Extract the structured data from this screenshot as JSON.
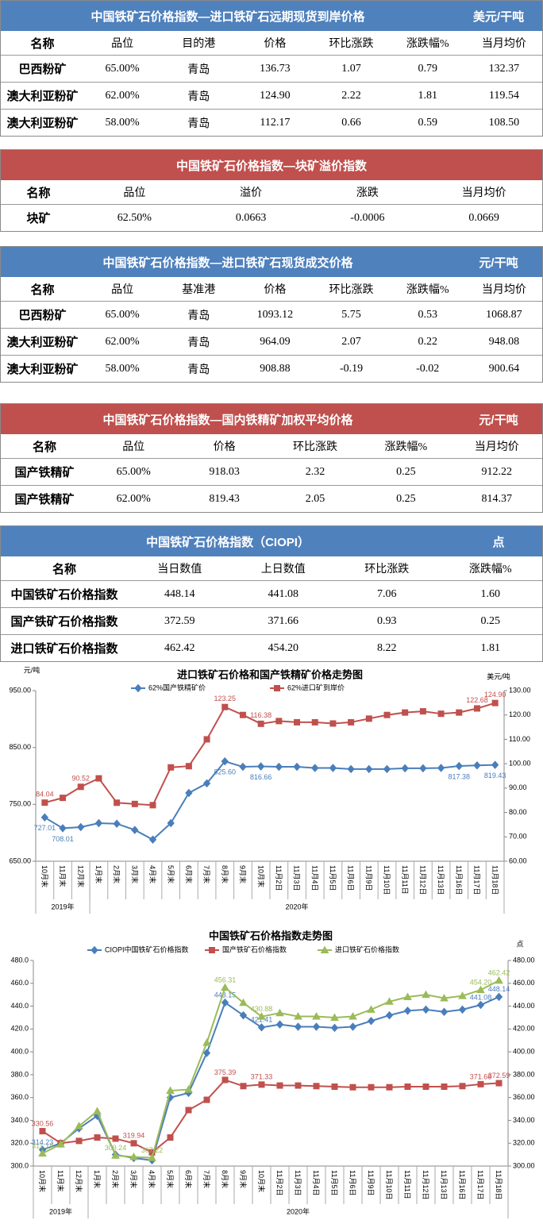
{
  "tables": [
    {
      "title": "中国铁矿石价格指数—进口铁矿石远期现货到岸价格",
      "unit": "美元/干吨",
      "header_color": "#4f81bd",
      "columns": [
        "名称",
        "品位",
        "目的港",
        "价格",
        "环比涨跌",
        "涨跌幅%",
        "当月均价"
      ],
      "rows": [
        [
          "巴西粉矿",
          "65.00%",
          "青岛",
          "136.73",
          "1.07",
          "0.79",
          "132.37"
        ],
        [
          "澳大利亚粉矿",
          "62.00%",
          "青岛",
          "124.90",
          "2.22",
          "1.81",
          "119.54"
        ],
        [
          "澳大利亚粉矿",
          "58.00%",
          "青岛",
          "112.17",
          "0.66",
          "0.59",
          "108.50"
        ]
      ]
    },
    {
      "title": "中国铁矿石价格指数—块矿溢价指数",
      "header_color": "#c0504d",
      "columns": [
        "名称",
        "品位",
        "溢价",
        "涨跌",
        "当月均价"
      ],
      "rows": [
        [
          "块矿",
          "62.50%",
          "0.0663",
          "-0.0006",
          "0.0669"
        ]
      ]
    },
    {
      "title": "中国铁矿石价格指数—进口铁矿石现货成交价格",
      "unit": "元/干吨",
      "header_color": "#4f81bd",
      "columns": [
        "名称",
        "品位",
        "基准港",
        "价格",
        "环比涨跌",
        "涨跌幅%",
        "当月均价"
      ],
      "rows": [
        [
          "巴西粉矿",
          "65.00%",
          "青岛",
          "1093.12",
          "5.75",
          "0.53",
          "1068.87"
        ],
        [
          "澳大利亚粉矿",
          "62.00%",
          "青岛",
          "964.09",
          "2.07",
          "0.22",
          "948.08"
        ],
        [
          "澳大利亚粉矿",
          "58.00%",
          "青岛",
          "908.88",
          "-0.19",
          "-0.02",
          "900.64"
        ]
      ]
    },
    {
      "title": "中国铁矿石价格指数—国内铁精矿加权平均价格",
      "unit": "元/干吨",
      "header_color": "#c0504d",
      "columns": [
        "名称",
        "品位",
        "价格",
        "环比涨跌",
        "涨跌幅%",
        "当月均价"
      ],
      "rows": [
        [
          "国产铁精矿",
          "65.00%",
          "918.03",
          "2.32",
          "0.25",
          "912.22"
        ],
        [
          "国产铁精矿",
          "62.00%",
          "819.43",
          "2.05",
          "0.25",
          "814.37"
        ]
      ]
    },
    {
      "title": "中国铁矿石价格指数（CIOPI）",
      "unit": "点",
      "header_color": "#4f81bd",
      "columns": [
        "名称",
        "当日数值",
        "上日数值",
        "环比涨跌",
        "涨跌幅%"
      ],
      "rows": [
        [
          "中国铁矿石价格指数",
          "448.14",
          "441.08",
          "7.06",
          "1.60"
        ],
        [
          "国产铁矿石价格指数",
          "372.59",
          "371.66",
          "0.93",
          "0.25"
        ],
        [
          "进口铁矿石价格指数",
          "462.42",
          "454.20",
          "8.22",
          "1.81"
        ]
      ]
    }
  ],
  "chart_data": [
    {
      "type": "line",
      "title": "进口铁矿石价格和国产铁精矿价格走势图",
      "y_label": "元/吨",
      "y2_label": "美元/吨",
      "categories": [
        "10月末",
        "11月末",
        "12月末",
        "1月末",
        "2月末",
        "3月末",
        "4月末",
        "5月末",
        "6月末",
        "7月末",
        "8月末",
        "9月末",
        "10月末",
        "11月2日",
        "11月3日",
        "11月4日",
        "11月5日",
        "11月6日",
        "11月9日",
        "11月10日",
        "11月11日",
        "11月12日",
        "11月13日",
        "11月16日",
        "11月17日",
        "11月18日"
      ],
      "x_groups": [
        {
          "label": "2019年",
          "categories": 3
        },
        {
          "label": "2020年",
          "categories": 23
        }
      ],
      "ylim": [
        650,
        950
      ],
      "yticks": [
        {
          "value": 650,
          "label": "650.00"
        },
        {
          "value": 750,
          "label": "750.00"
        },
        {
          "value": 850,
          "label": "850.00"
        },
        {
          "value": 950,
          "label": "950.00"
        }
      ],
      "y2lim": [
        60,
        130
      ],
      "y2ticks": [
        {
          "value": 60,
          "label": "60.00"
        },
        {
          "value": 70,
          "label": "70.00"
        },
        {
          "value": 80,
          "label": "80.00"
        },
        {
          "value": 90,
          "label": "90.00"
        },
        {
          "value": 100,
          "label": "100.00"
        },
        {
          "value": 110,
          "label": "110.00"
        },
        {
          "value": 120,
          "label": "120.00"
        },
        {
          "value": 130,
          "label": "130.00"
        }
      ],
      "series": [
        {
          "name": "62%国产铁精矿价",
          "color": "#4a7ebb",
          "marker": "diamond",
          "values": [
            727.01,
            708.01,
            710,
            717,
            716,
            705,
            688,
            717,
            770,
            787,
            825.6,
            816,
            816.66,
            816,
            816,
            814,
            814,
            812,
            812,
            812,
            813.5,
            813.5,
            814,
            817.38,
            818.5,
            819.43
          ],
          "value_labels": [
            "727.01",
            "708.01",
            null,
            null,
            null,
            null,
            null,
            null,
            null,
            null,
            "825.60",
            null,
            "816.66",
            null,
            null,
            null,
            null,
            null,
            null,
            null,
            null,
            null,
            null,
            "817.38",
            null,
            "819.43"
          ]
        },
        {
          "name": "62%进口矿到岸价",
          "color": "#c0504d",
          "marker": "square",
          "axis": "y2",
          "values": [
            84.04,
            86,
            90.52,
            94,
            84,
            83.5,
            83,
            98.5,
            99,
            110,
            123.25,
            120,
            116.38,
            117.5,
            117,
            117,
            116.5,
            117,
            118.5,
            120,
            121,
            121.5,
            120.5,
            121,
            122.68,
            124.9
          ],
          "value_labels": [
            "84.04",
            null,
            "90.52",
            null,
            null,
            null,
            null,
            null,
            null,
            null,
            "123.25",
            null,
            "116.38",
            null,
            null,
            null,
            null,
            null,
            null,
            null,
            null,
            null,
            null,
            null,
            "122.68",
            "124.90"
          ]
        }
      ]
    },
    {
      "type": "line",
      "title": "中国铁矿石价格指数走势图",
      "y2_label": "点",
      "categories": [
        "10月末",
        "11月末",
        "12月末",
        "1月末",
        "2月末",
        "3月末",
        "4月末",
        "5月末",
        "6月末",
        "7月末",
        "8月末",
        "9月末",
        "10月末",
        "11月2日",
        "11月3日",
        "11月4日",
        "11月5日",
        "11月6日",
        "11月9日",
        "11月10日",
        "11月11日",
        "11月12日",
        "11月13日",
        "11月16日",
        "11月17日",
        "11月18日"
      ],
      "x_groups": [
        {
          "label": "2019年",
          "categories": 3
        },
        {
          "label": "2020年",
          "categories": 23
        }
      ],
      "ylim": [
        300,
        480
      ],
      "yticks": [
        {
          "value": 300,
          "label": "300.0"
        },
        {
          "value": 320,
          "label": "320.0"
        },
        {
          "value": 340,
          "label": "340.0"
        },
        {
          "value": 360,
          "label": "360.0"
        },
        {
          "value": 380,
          "label": "380.0"
        },
        {
          "value": 400,
          "label": "400.0"
        },
        {
          "value": 420,
          "label": "420.0"
        },
        {
          "value": 440,
          "label": "440.0"
        },
        {
          "value": 460,
          "label": "460.0"
        },
        {
          "value": 480,
          "label": "480.0"
        }
      ],
      "y2lim": [
        300,
        480
      ],
      "y2ticks": [
        {
          "value": 300,
          "label": "300.00"
        },
        {
          "value": 320,
          "label": "320.00"
        },
        {
          "value": 340,
          "label": "340.00"
        },
        {
          "value": 360,
          "label": "360.00"
        },
        {
          "value": 380,
          "label": "380.00"
        },
        {
          "value": 400,
          "label": "400.00"
        },
        {
          "value": 420,
          "label": "420.00"
        },
        {
          "value": 440,
          "label": "440.00"
        },
        {
          "value": 460,
          "label": "460.00"
        },
        {
          "value": 480,
          "label": "480.00"
        }
      ],
      "series": [
        {
          "name": "CIOPI中国铁矿石价格指数",
          "color": "#4a7ebb",
          "marker": "diamond",
          "values": [
            314.23,
            320,
            333,
            344,
            310,
            307,
            305,
            360,
            364,
            399,
            443.15,
            432,
            421.41,
            424,
            422,
            422,
            421,
            422,
            427,
            432,
            436,
            437,
            435,
            437,
            441.08,
            448.14
          ],
          "value_labels": [
            "314.23",
            null,
            null,
            null,
            null,
            null,
            null,
            null,
            null,
            null,
            "443.15",
            null,
            "421.41",
            null,
            null,
            null,
            null,
            null,
            null,
            null,
            null,
            null,
            null,
            null,
            "441.08",
            "448.14"
          ]
        },
        {
          "name": "国产铁矿石价格指数",
          "color": "#c0504d",
          "marker": "square",
          "values": [
            330.56,
            320,
            322,
            325,
            324,
            319.94,
            312,
            325,
            349,
            358,
            375.39,
            370,
            371.33,
            370.5,
            370.5,
            370,
            369.5,
            369,
            369,
            369,
            369.5,
            369.5,
            369.5,
            370,
            371.66,
            372.59
          ],
          "value_labels": [
            "330.56",
            null,
            null,
            null,
            null,
            "319.94",
            null,
            null,
            null,
            null,
            "375.39",
            null,
            "371.33",
            null,
            null,
            null,
            null,
            null,
            null,
            null,
            null,
            null,
            null,
            null,
            "371.66",
            "372.59"
          ]
        },
        {
          "name": "进口铁矿石价格指数",
          "color": "#9bbb59",
          "marker": "triangle",
          "values": [
            311.14,
            319,
            335,
            348,
            309.24,
            308,
            307.22,
            366,
            367,
            408,
            456.31,
            443,
            430.88,
            434,
            431,
            431,
            430,
            431,
            437,
            444,
            448,
            450,
            447,
            449,
            454.2,
            462.42
          ],
          "value_labels": [
            "311.14",
            null,
            null,
            null,
            "309.24",
            null,
            "307.22",
            null,
            null,
            null,
            "456.31",
            null,
            "430.88",
            null,
            null,
            null,
            null,
            null,
            null,
            null,
            null,
            null,
            null,
            null,
            "454.20",
            "462.42"
          ]
        }
      ]
    }
  ]
}
